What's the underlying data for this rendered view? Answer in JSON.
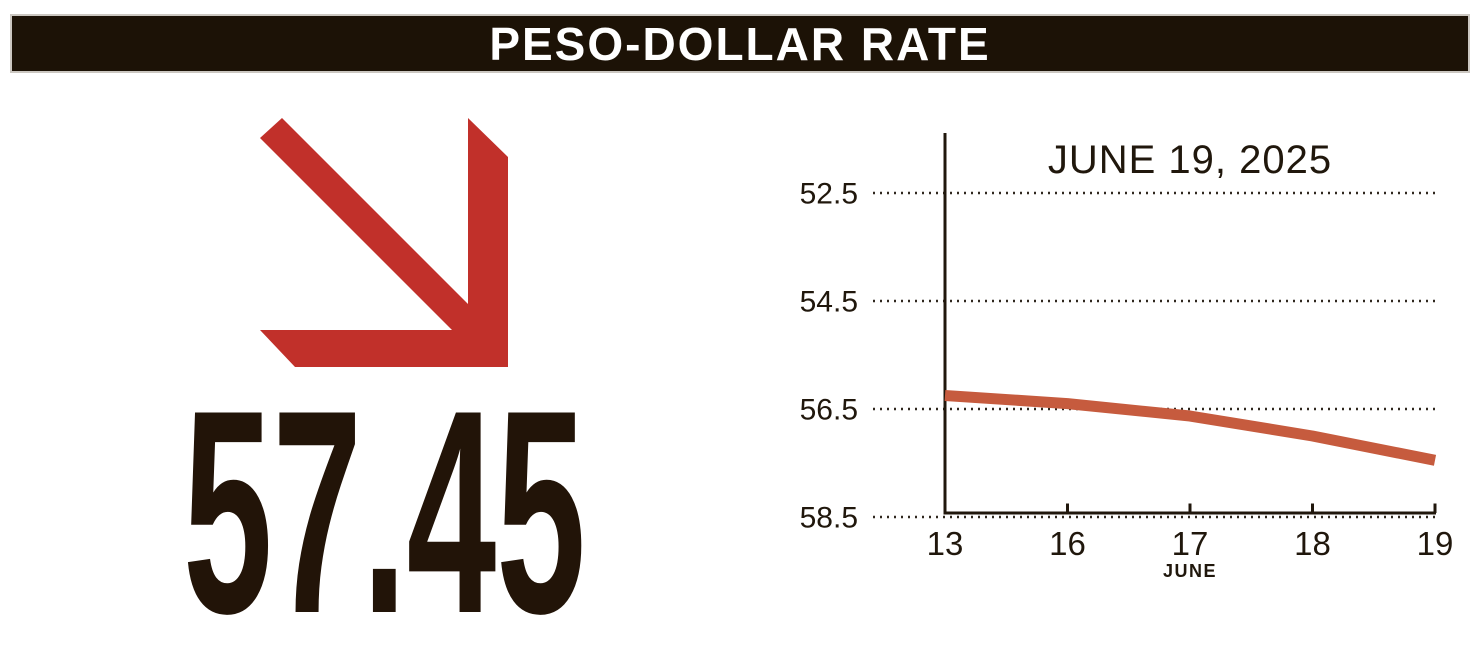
{
  "header": {
    "title": "PESO-DOLLAR RATE",
    "bg_color": "#1c1206",
    "text_color": "#ffffff"
  },
  "indicator": {
    "direction": "down",
    "arrow_icon": "down-right-arrow",
    "arrow_color": "#c1302a",
    "value": "57.45",
    "value_color": "#221408"
  },
  "chart_data": {
    "type": "line",
    "title": "JUNE 19, 2025",
    "xlabel": "JUNE",
    "ylabel": "",
    "x": [
      13,
      16,
      17,
      18,
      19
    ],
    "series": [
      {
        "name": "Peso-dollar rate",
        "values": [
          56.25,
          56.4,
          56.63,
          57.0,
          57.45
        ]
      }
    ],
    "yticks": [
      52.5,
      54.5,
      56.5,
      58.5
    ],
    "ylim": [
      52.5,
      58.5
    ],
    "y_inverted": true,
    "grid": "horizontal-dotted",
    "legend": "none",
    "line_color": "#c65b3e",
    "axis_color": "#20170c",
    "grid_color": "#2f271e"
  }
}
